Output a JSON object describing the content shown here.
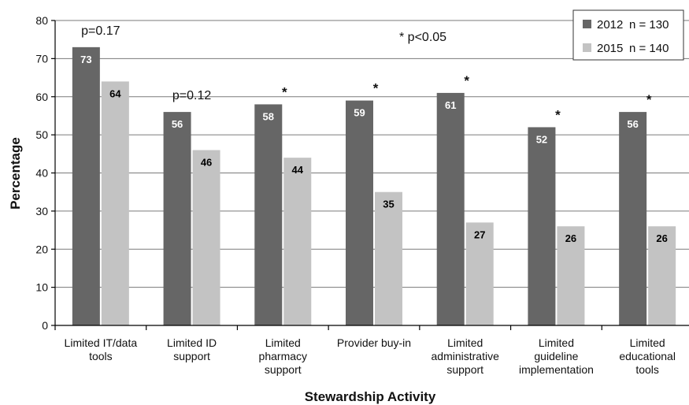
{
  "chart_data": {
    "type": "bar",
    "xlabel": "Stewardship Activity",
    "ylabel": "Percentage",
    "ylim": [
      0,
      80
    ],
    "y_ticks": [
      0,
      10,
      20,
      30,
      40,
      50,
      60,
      70,
      80
    ],
    "grid": true,
    "legend_position": "top-right",
    "categories": [
      [
        "Limited IT/data",
        "tools"
      ],
      [
        "Limited ID",
        "support"
      ],
      [
        "Limited",
        "pharmacy",
        "support"
      ],
      [
        "Provider buy-in"
      ],
      [
        "Limited",
        "administrative",
        "support"
      ],
      [
        "Limited",
        "guideline",
        "implementation"
      ],
      [
        "Limited",
        "educational",
        "tools"
      ]
    ],
    "series": [
      {
        "name": "2012",
        "n_label": "n = 130",
        "color": "#666666",
        "label_color": "#ffffff",
        "values": [
          73,
          56,
          58,
          59,
          61,
          52,
          56
        ]
      },
      {
        "name": "2015",
        "n_label": "n = 140",
        "color": "#c3c3c3",
        "label_color": "#000000",
        "values": [
          64,
          46,
          44,
          35,
          27,
          26,
          26
        ]
      }
    ],
    "significance": [
      "p=0.17",
      "p=0.12",
      "*",
      "*",
      "*",
      "*",
      "*"
    ],
    "legend_note": "* p<0.05"
  }
}
